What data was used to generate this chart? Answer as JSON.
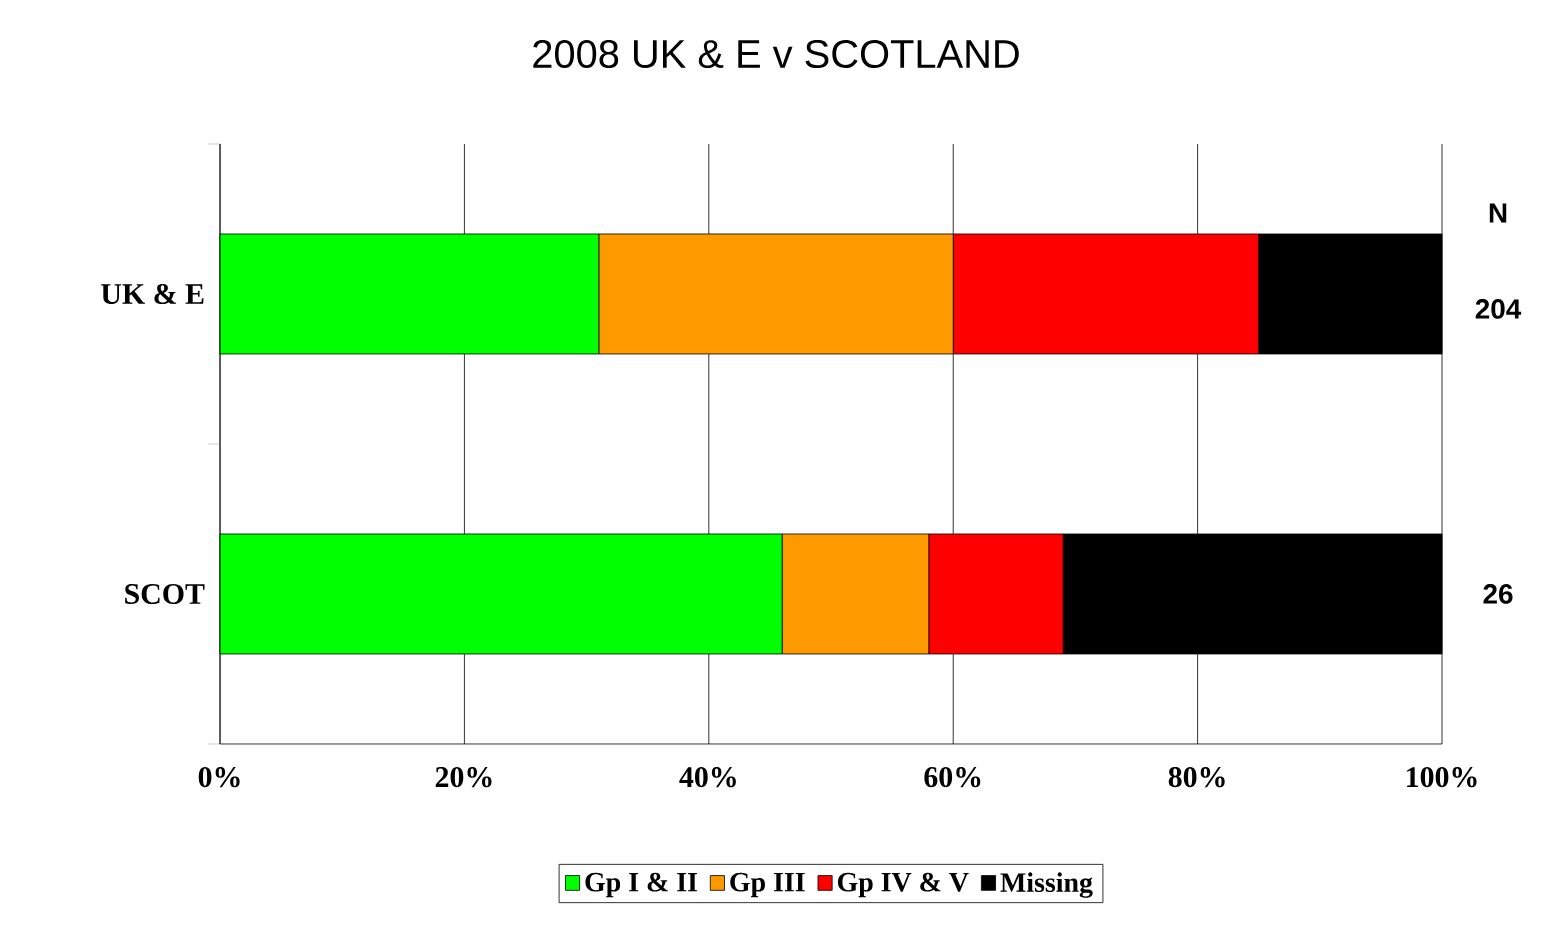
{
  "chart_data": {
    "type": "bar",
    "orientation": "horizontal",
    "stacked": true,
    "title": "2008 UK & E v SCOTLAND",
    "categories": [
      "UK & E",
      "SCOT"
    ],
    "series": [
      {
        "name": "Gp I & II",
        "color": "#00ff00",
        "values": [
          31,
          46
        ]
      },
      {
        "name": "Gp III",
        "color": "#ff9900",
        "values": [
          29,
          12
        ]
      },
      {
        "name": "Gp IV & V",
        "color": "#ff0000",
        "values": [
          25,
          11
        ]
      },
      {
        "name": "Missing",
        "color": "#000000",
        "values": [
          15,
          31
        ]
      }
    ],
    "xlim": [
      0,
      100
    ],
    "xticks": [
      {
        "value": 0,
        "label": "0%"
      },
      {
        "value": 20,
        "label": "20%"
      },
      {
        "value": 40,
        "label": "40%"
      },
      {
        "value": 60,
        "label": "60%"
      },
      {
        "value": 80,
        "label": "80%"
      },
      {
        "value": 100,
        "label": "100%"
      }
    ],
    "grid": "x",
    "legend": "bottom",
    "annotations": [
      "N",
      "204",
      "26"
    ]
  }
}
